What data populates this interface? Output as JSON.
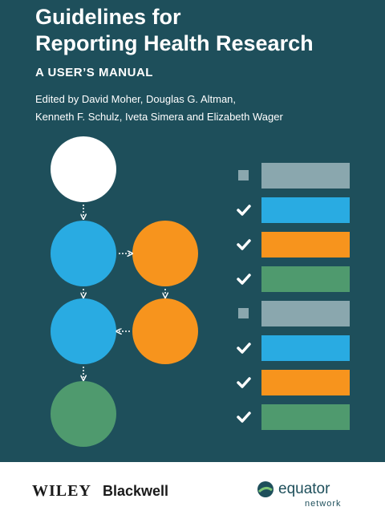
{
  "title": [
    "Guidelines for",
    "Reporting Health Research"
  ],
  "subtitle": "A USER’S MANUAL",
  "editors": [
    "Edited by David Moher, Douglas G. Altman,",
    "Kenneth F. Schulz, Iveta Simera and Elizabeth Wager"
  ],
  "publisher": {
    "wiley": "WILEY",
    "blackwell": "Blackwell"
  },
  "logo": {
    "name": "equator",
    "sub": "network"
  }
}
